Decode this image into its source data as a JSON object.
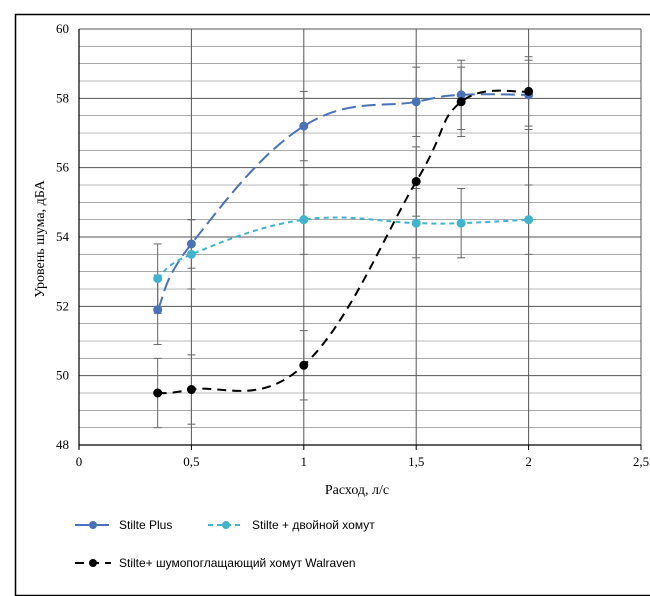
{
  "chart_data": {
    "type": "line",
    "xlabel": "Расход, л/с",
    "ylabel": "Уровень шума, дБА",
    "xlim": [
      0,
      2.5
    ],
    "ylim": [
      48,
      60
    ],
    "x_ticks": [
      0,
      0.5,
      1,
      1.5,
      2,
      2.5
    ],
    "x_tick_labels": [
      "0",
      "0,5",
      "1",
      "1,5",
      "2",
      "2,5"
    ],
    "y_ticks": [
      48,
      50,
      52,
      54,
      56,
      58,
      60
    ],
    "y_tick_labels": [
      "48",
      "50",
      "52",
      "54",
      "56",
      "58",
      "60"
    ],
    "grid": true,
    "legend_position": "bottom",
    "series": [
      {
        "name": "Stilte Plus",
        "color": "#4a72b8",
        "dash": "long-dash",
        "x": [
          0.35,
          0.5,
          1,
          1.5,
          1.7,
          2
        ],
        "y": [
          51.9,
          53.8,
          57.2,
          57.9,
          58.1,
          58.1
        ],
        "error": [
          1,
          0.7,
          1,
          1,
          1,
          1
        ]
      },
      {
        "name": "Stilte + двойной хомут",
        "color": "#3fb5cc",
        "dash": "short-dash",
        "x": [
          0.35,
          0.5,
          1,
          1.5,
          1.7,
          2
        ],
        "y": [
          52.8,
          53.5,
          54.5,
          54.4,
          54.4,
          54.5
        ],
        "error": [
          1,
          1,
          1,
          1,
          1,
          1
        ]
      },
      {
        "name": "Stilte+ шумопоглащающий хомут Walraven",
        "color": "#000000",
        "dash": "dash",
        "x": [
          0.35,
          0.5,
          1,
          1.5,
          1.7,
          2
        ],
        "y": [
          49.5,
          49.6,
          50.3,
          55.6,
          57.9,
          58.2
        ],
        "error": [
          1,
          1,
          1,
          1,
          1,
          1
        ]
      }
    ]
  }
}
